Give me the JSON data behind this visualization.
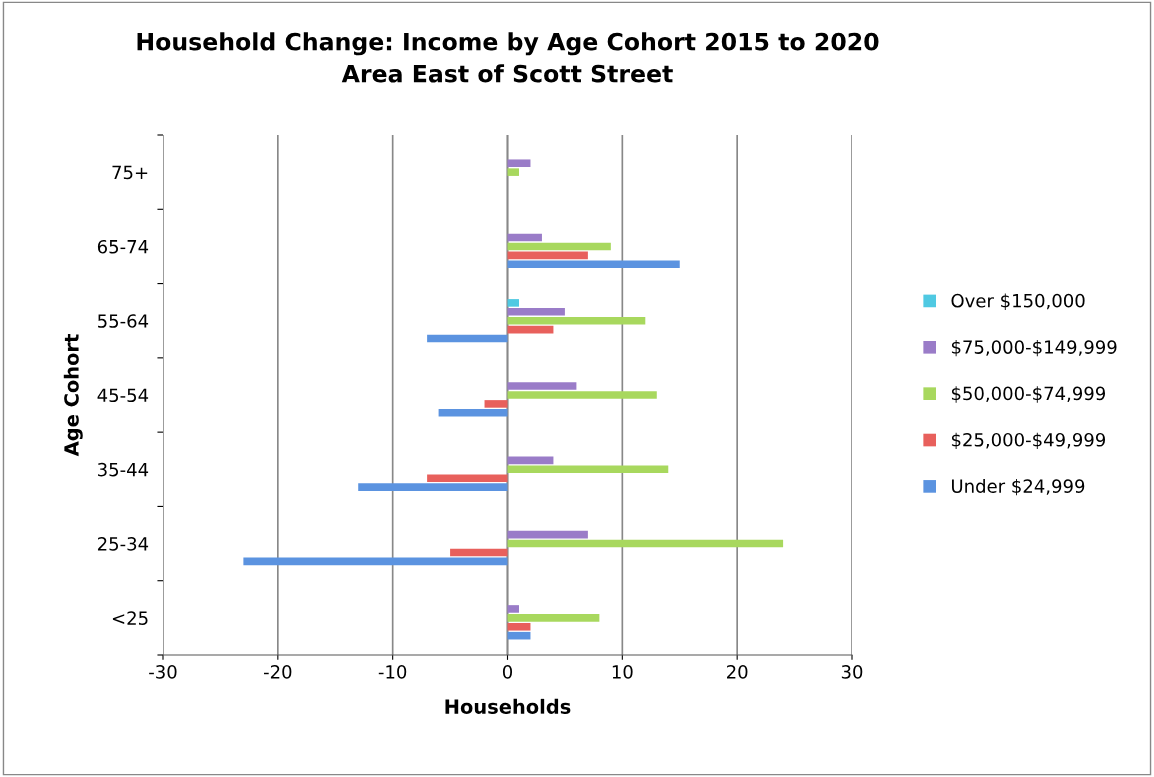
{
  "chart_data": {
    "type": "bar",
    "orientation": "horizontal",
    "title": "Household Change: Income by Age Cohort 2015 to 2020\nArea East of Scott Street",
    "xlabel": "Households",
    "ylabel": "Age Cohort",
    "categories": [
      "75+",
      "65-74",
      "55-64",
      "45-54",
      "35-44",
      "25-34",
      "<25"
    ],
    "series": [
      {
        "name": "Under $24,999",
        "color": "#5b93e0",
        "values": [
          0,
          15,
          -7,
          -6,
          -13,
          -23,
          2
        ]
      },
      {
        "name": "$25,000-$49,999",
        "color": "#e8605c",
        "values": [
          0,
          7,
          4,
          -2,
          -7,
          -5,
          2
        ]
      },
      {
        "name": "$50,000-$74,999",
        "color": "#a8d85e",
        "values": [
          1,
          9,
          12,
          13,
          14,
          24,
          8
        ]
      },
      {
        "name": "$75,000-$149,999",
        "color": "#9a7cc8",
        "values": [
          2,
          3,
          5,
          6,
          4,
          7,
          1
        ]
      },
      {
        "name": "Over $150,000",
        "color": "#4fc9e2",
        "values": [
          0,
          0,
          1,
          0,
          0,
          0,
          0
        ]
      }
    ],
    "xlim": [
      -30,
      30
    ],
    "xticks": [
      -30,
      -20,
      -10,
      0,
      10,
      20,
      30
    ],
    "grid": "x",
    "legend": "right"
  }
}
